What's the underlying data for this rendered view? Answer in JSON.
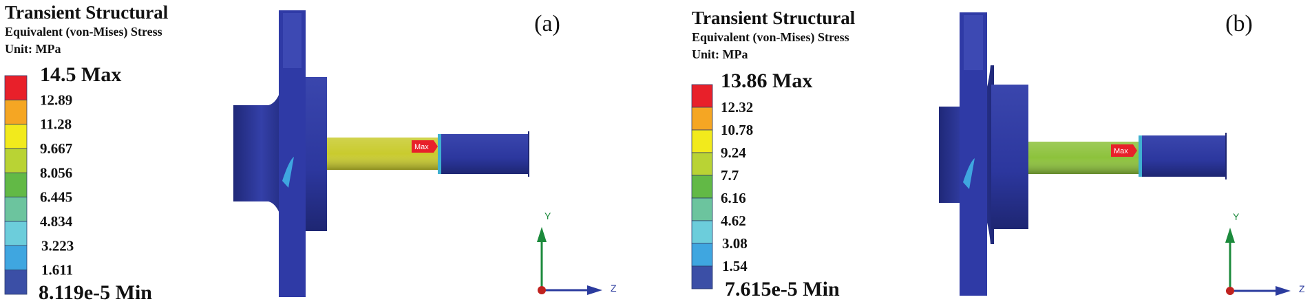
{
  "panels": [
    {
      "label": "(a)",
      "title": "Transient Structural",
      "subtitle": "Equivalent (von-Mises) Stress",
      "unit": "Unit: MPa",
      "max_label": "14.5 Max",
      "min_label": "8.119e-5 Min",
      "ticks": [
        "12.89",
        "11.28",
        "9.667",
        "8.056",
        "6.445",
        "4.834",
        "3.223",
        "1.611"
      ],
      "shaft_color": "#c9cb2e",
      "max_marker": "Max",
      "axis_y": "Y",
      "axis_z": "Z"
    },
    {
      "label": "(b)",
      "title": "Transient Structural",
      "subtitle": "Equivalent (von-Mises) Stress",
      "unit": "Unit: MPa",
      "max_label": "13.86 Max",
      "min_label": "7.615e-5 Min",
      "ticks": [
        "12.32",
        "10.78",
        "9.24",
        "7.7",
        "6.16",
        "4.62",
        "3.08",
        "1.54"
      ],
      "shaft_color": "#8dc23c",
      "max_marker": "Max",
      "axis_y": "Y",
      "axis_z": "Z"
    }
  ],
  "legend_colors": [
    "#e8202a",
    "#f5a623",
    "#f2ea1c",
    "#b9d334",
    "#62b946",
    "#6cc49e",
    "#6ccddb",
    "#3fa6e0",
    "#3b4fa6"
  ],
  "model_color": "#2b36a0",
  "axis_colors": {
    "y": "#1c8a3c",
    "z": "#2b3b9e",
    "origin": "#c0221f"
  }
}
